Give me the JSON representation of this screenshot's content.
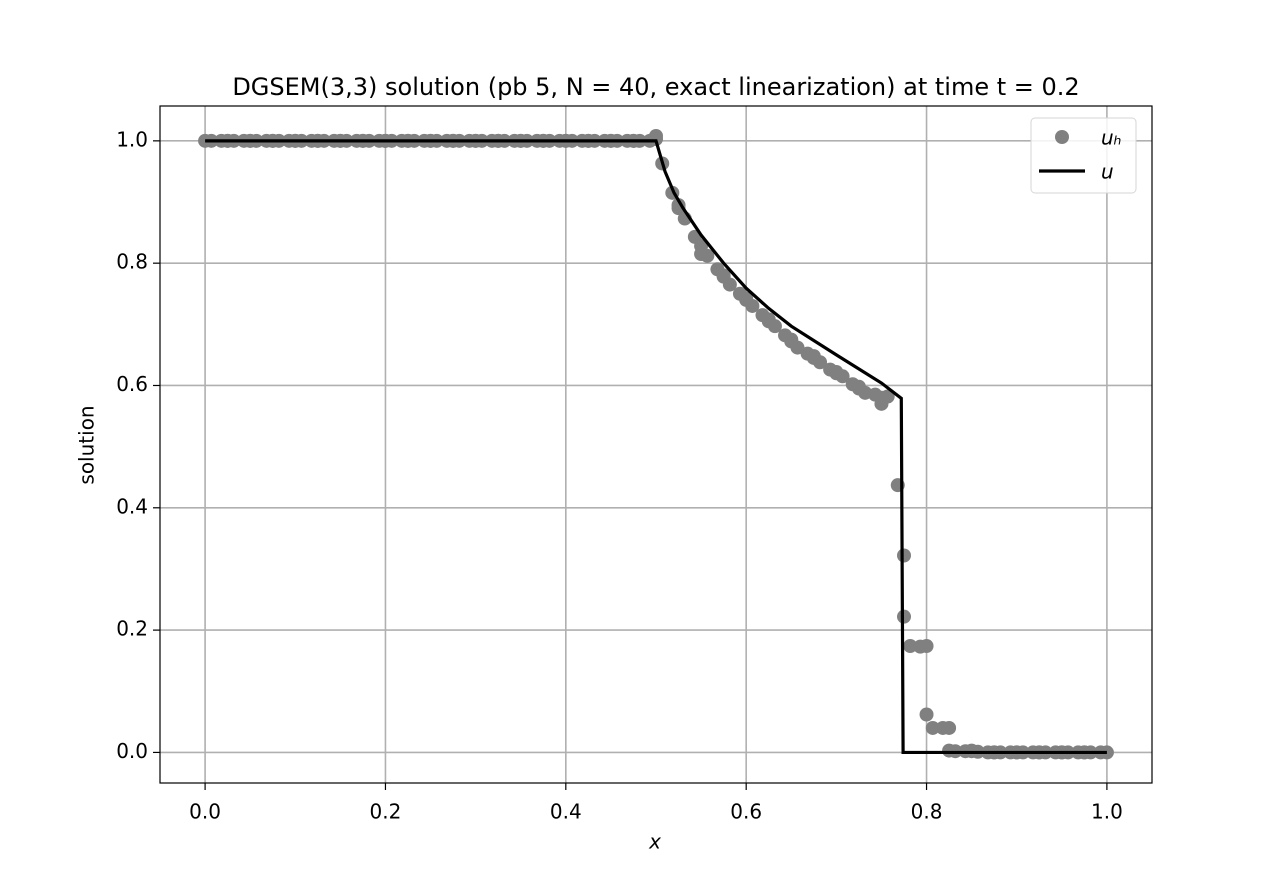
{
  "chart_data": {
    "type": "scatter",
    "title": "DGSEM(3,3) solution (pb 5, N = 40, exact linearization) at time t = 0.2",
    "xlabel": "x",
    "ylabel": "solution",
    "xlim": [
      -0.05,
      1.05
    ],
    "ylim": [
      -0.05,
      1.057
    ],
    "xticks": [
      {
        "value": 0,
        "label": "0.0"
      },
      0.2,
      0.4,
      0.6,
      0.8,
      {
        "value": 1,
        "label": "1.0"
      }
    ],
    "yticks": [
      {
        "value": 0,
        "label": "0.0"
      },
      0.2,
      0.4,
      0.6,
      0.8,
      {
        "value": 1,
        "label": "1.0"
      }
    ],
    "grid": true,
    "legend": "upper right",
    "series": [
      {
        "name": "uₕ",
        "style": "markers",
        "color": "#808080",
        "x": [
          0,
          0.0069,
          0.0181,
          0.025,
          0.025,
          0.0319,
          0.0431,
          0.05,
          0.05,
          0.0569,
          0.0681,
          0.075,
          0.075,
          0.0819,
          0.0931,
          0.1,
          0.1,
          0.1069,
          0.1181,
          0.125,
          0.125,
          0.1319,
          0.1431,
          0.15,
          0.15,
          0.1569,
          0.1681,
          0.175,
          0.175,
          0.1819,
          0.1931,
          0.2,
          0.2,
          0.2069,
          0.2181,
          0.225,
          0.225,
          0.2319,
          0.2431,
          0.25,
          0.25,
          0.2569,
          0.2681,
          0.275,
          0.275,
          0.2819,
          0.2931,
          0.3,
          0.3,
          0.3069,
          0.3181,
          0.325,
          0.325,
          0.3319,
          0.3431,
          0.35,
          0.35,
          0.3569,
          0.3681,
          0.375,
          0.375,
          0.3819,
          0.3931,
          0.4,
          0.4,
          0.4069,
          0.4181,
          0.425,
          0.425,
          0.4319,
          0.4431,
          0.45,
          0.45,
          0.4569,
          0.4681,
          0.475,
          0.475,
          0.4819,
          0.4931,
          0.5,
          0.5,
          0.5069,
          0.5181,
          0.525,
          0.525,
          0.5319,
          0.5431,
          0.55,
          0.55,
          0.5569,
          0.5681,
          0.575,
          0.575,
          0.5819,
          0.5931,
          0.6,
          0.6,
          0.6069,
          0.6181,
          0.625,
          0.625,
          0.6319,
          0.6431,
          0.65,
          0.65,
          0.6569,
          0.6681,
          0.675,
          0.675,
          0.6819,
          0.6931,
          0.7,
          0.7,
          0.7069,
          0.7181,
          0.725,
          0.725,
          0.7319,
          0.7431,
          0.75,
          0.75,
          0.7569,
          0.7681,
          0.775,
          0.775,
          0.7819,
          0.7931,
          0.8,
          0.8,
          0.8069,
          0.8181,
          0.825,
          0.825,
          0.8319,
          0.8431,
          0.85,
          0.85,
          0.8569,
          0.8681,
          0.875,
          0.875,
          0.8819,
          0.8931,
          0.9,
          0.9,
          0.9069,
          0.9181,
          0.925,
          0.925,
          0.9319,
          0.9431,
          0.95,
          0.95,
          0.9569,
          0.9681,
          0.975,
          0.975,
          0.9819,
          0.9931,
          1
        ],
        "values": [
          1,
          1,
          1,
          1,
          1,
          1,
          1,
          1,
          1,
          1,
          1,
          1,
          1,
          1,
          1,
          1,
          1,
          1,
          1,
          1,
          1,
          1,
          1,
          1,
          1,
          1,
          1,
          1,
          1,
          1,
          1,
          1,
          1,
          1,
          1,
          1,
          1,
          1,
          1,
          1,
          1,
          1,
          1,
          1,
          1,
          1,
          1,
          1,
          1,
          1,
          1,
          1,
          1,
          1,
          1,
          1,
          1,
          1,
          1,
          1,
          1,
          1,
          1,
          1,
          1,
          1,
          1,
          1,
          1,
          1,
          1,
          1,
          1,
          1,
          1,
          1,
          1,
          1,
          1,
          1.008,
          1.003,
          0.963,
          0.915,
          0.895,
          0.89,
          0.873,
          0.843,
          0.828,
          0.815,
          0.812,
          0.79,
          0.78,
          0.778,
          0.765,
          0.75,
          0.74,
          0.742,
          0.73,
          0.715,
          0.705,
          0.708,
          0.697,
          0.682,
          0.675,
          0.672,
          0.662,
          0.652,
          0.645,
          0.648,
          0.638,
          0.626,
          0.62,
          0.622,
          0.615,
          0.602,
          0.595,
          0.598,
          0.588,
          0.585,
          0.57,
          0.58,
          0.582,
          0.437,
          0.322,
          0.222,
          0.174,
          0.173,
          0.174,
          0.062,
          0.04,
          0.04,
          0.04,
          0.003,
          0.002,
          0.002,
          0.003,
          0.002,
          0.001,
          0,
          0,
          0,
          0,
          0,
          0,
          0,
          0,
          0,
          0,
          0,
          0,
          0,
          0,
          0,
          0,
          0,
          0,
          0,
          0,
          0,
          0
        ]
      },
      {
        "name": "u",
        "style": "line",
        "color": "#000000",
        "x": [
          0,
          0.5,
          0.51,
          0.52,
          0.53,
          0.55,
          0.575,
          0.6,
          0.625,
          0.65,
          0.7,
          0.75,
          0.772,
          0.774,
          1
        ],
        "values": [
          1,
          1,
          0.95,
          0.915,
          0.89,
          0.846,
          0.8,
          0.759,
          0.726,
          0.697,
          0.65,
          0.604,
          0.579,
          0,
          0
        ]
      }
    ]
  }
}
